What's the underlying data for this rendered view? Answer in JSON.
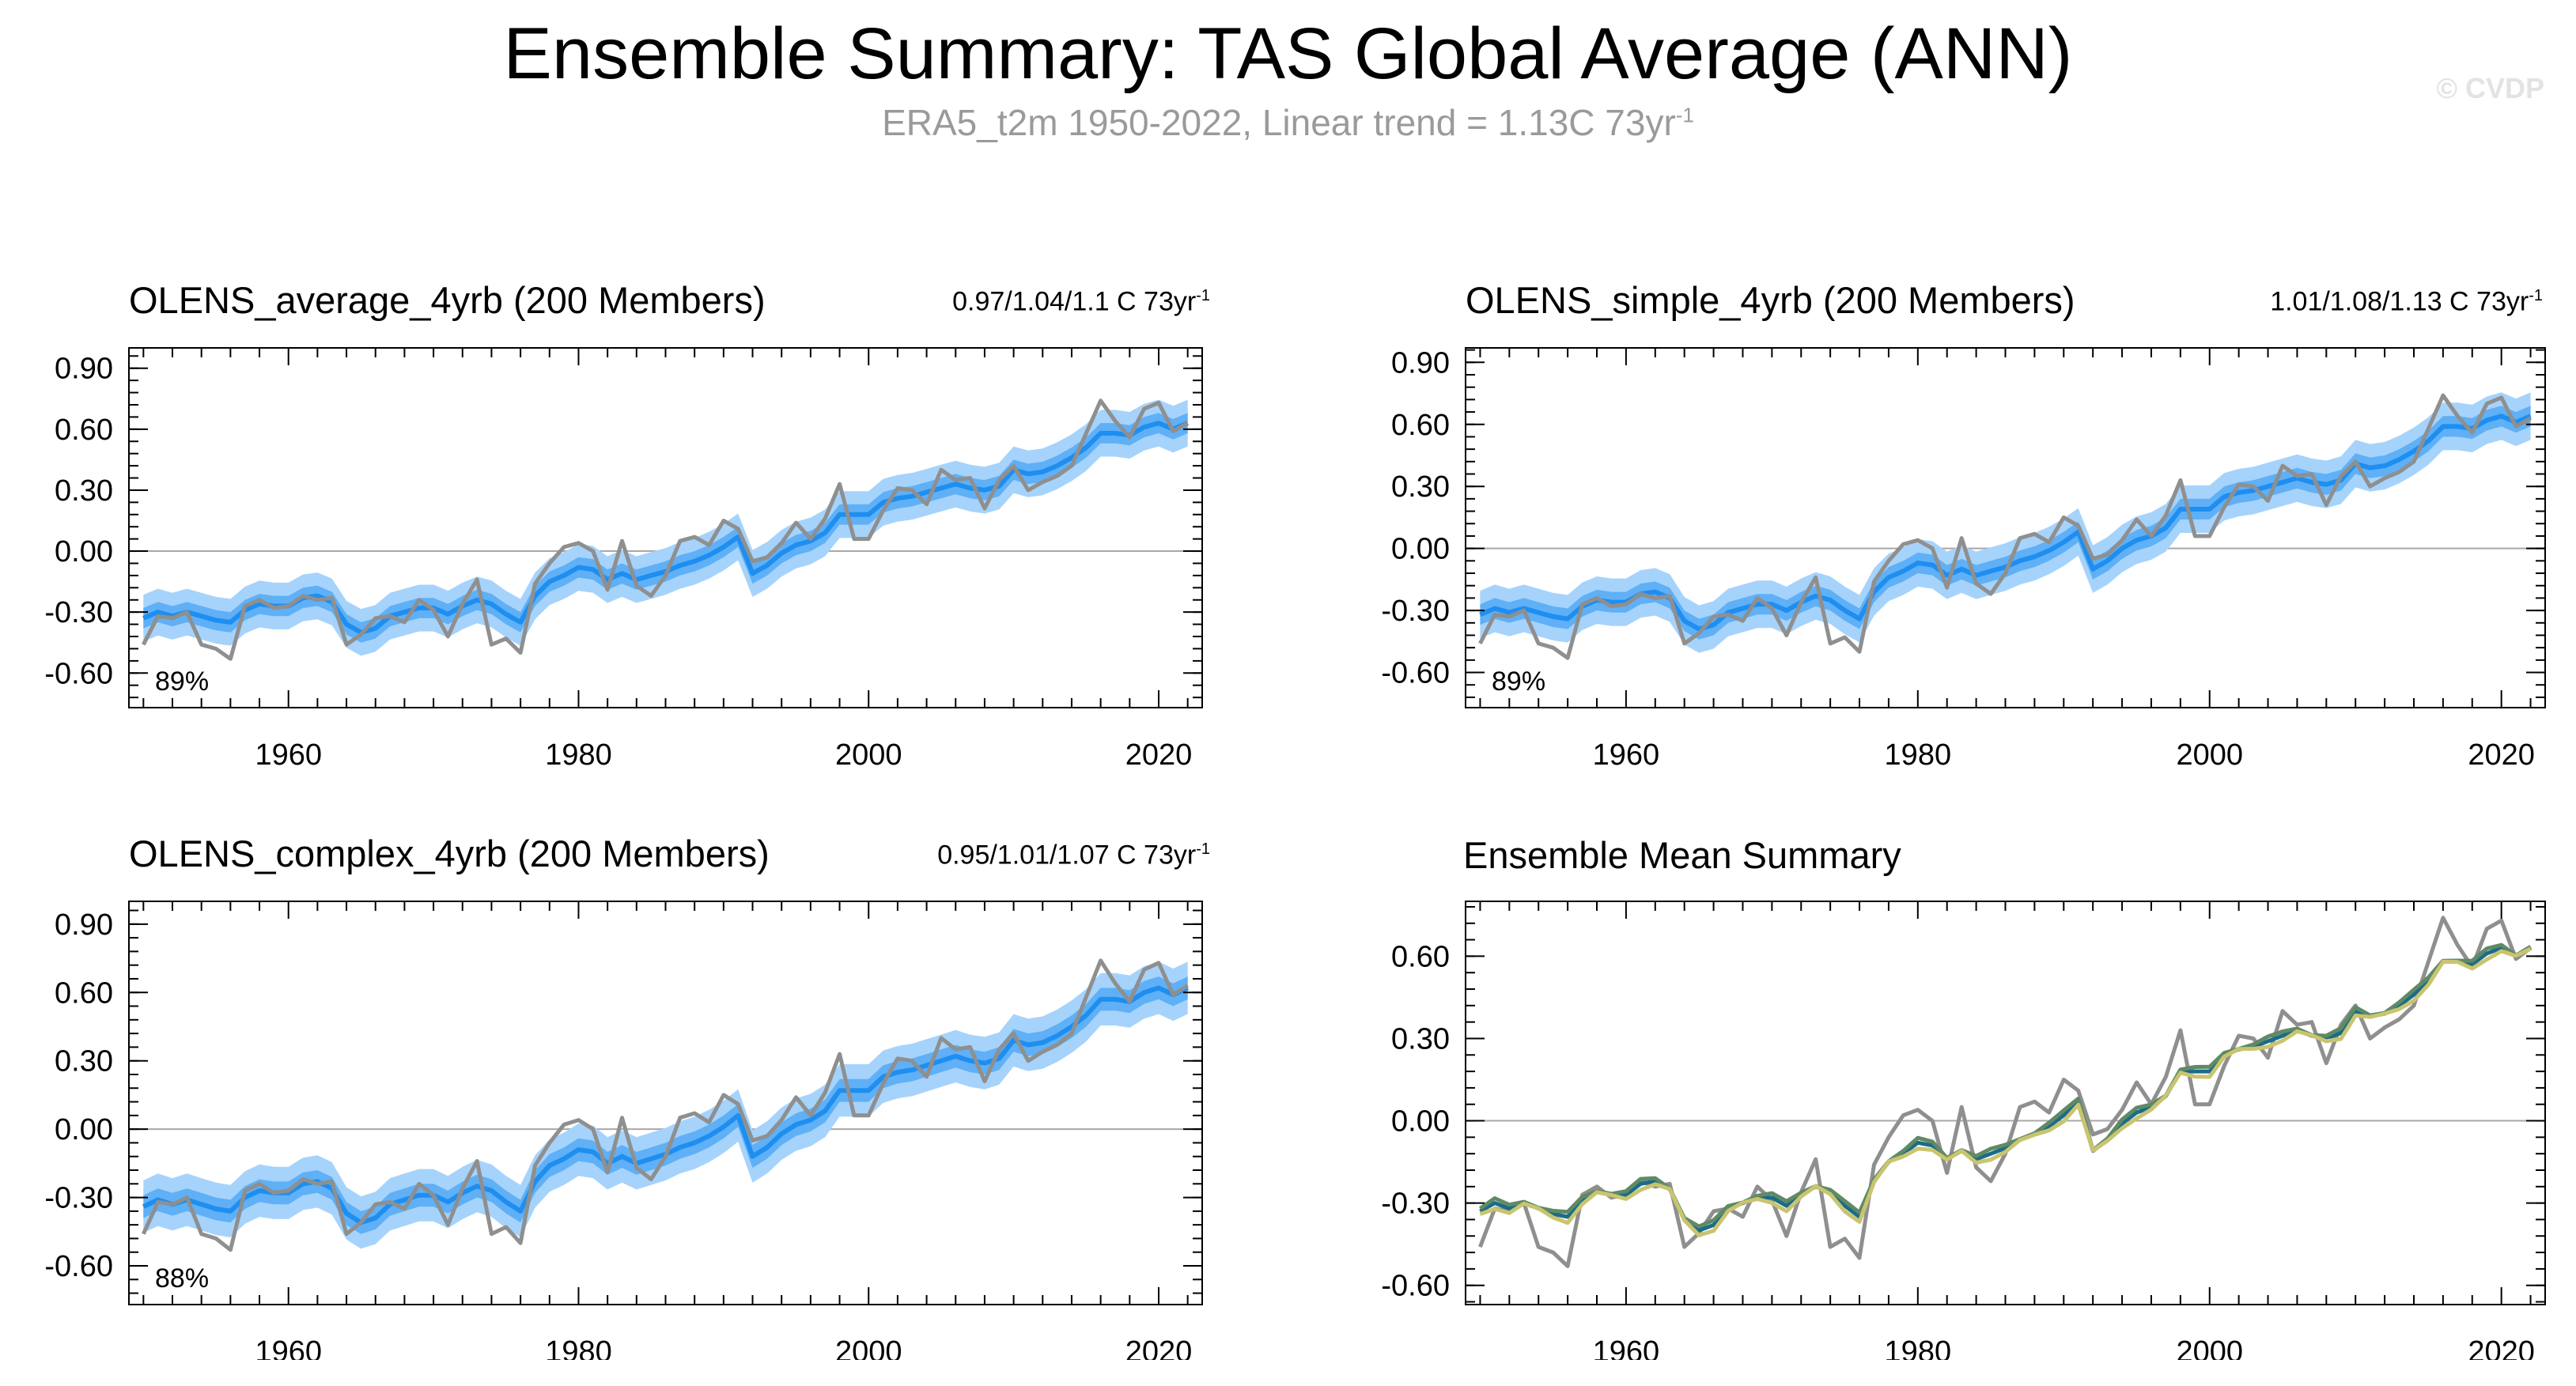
{
  "main_title": "Ensemble Summary: TAS Global Average (ANN)",
  "subtitle": {
    "text": "ERA5_t2m 1950-2022, Linear trend = 1.13C 73yr",
    "superscript": "-1"
  },
  "watermark": "© CVDP",
  "colors": {
    "band_outer": "#a6d3fb",
    "band_inner": "#5fb0f6",
    "ensemble_mean_line": "#1e8ef0",
    "observations": "#8f8f8f",
    "average_title": "#1b6b8a",
    "simple_title": "#5f8a65",
    "complex_title": "#c9c46f",
    "zero_line": "#a8a8a8"
  },
  "chart_data": [
    {
      "type": "line",
      "id": "average",
      "title": "OLENS_average_4yrb (200 Members)",
      "title_color": "#1b6b8a",
      "trend": {
        "text": "0.97/1.04/1.1 C 73yr",
        "superscript": "-1"
      },
      "percent_label": "89%",
      "xlim": [
        1949,
        2023
      ],
      "ylim": [
        -0.77,
        1.0
      ],
      "xticks": [
        1960,
        1980,
        2000,
        2020
      ],
      "xtick_labels": [
        "1960",
        "1980",
        "2000",
        "2020"
      ],
      "yticks": [
        -0.6,
        -0.3,
        0.0,
        0.3,
        0.6,
        0.9
      ],
      "ytick_labels": [
        "-0.60",
        "-0.30",
        "0.00",
        "0.30",
        "0.60",
        "0.90"
      ],
      "ensemble_offset": 0.0,
      "legend": []
    },
    {
      "type": "line",
      "id": "simple",
      "title": "OLENS_simple_4yrb (200 Members)",
      "title_color": "#5f8a65",
      "trend": {
        "text": "1.01/1.08/1.13 C 73yr",
        "superscript": "-1"
      },
      "percent_label": "89%",
      "xlim": [
        1949,
        2023
      ],
      "ylim": [
        -0.77,
        0.97
      ],
      "xticks": [
        1960,
        1980,
        2000,
        2020
      ],
      "xtick_labels": [
        "1960",
        "1980",
        "2000",
        "2020"
      ],
      "yticks": [
        -0.6,
        -0.3,
        0.0,
        0.3,
        0.6,
        0.9
      ],
      "ytick_labels": [
        "-0.60",
        "-0.30",
        "0.00",
        "0.30",
        "0.60",
        "0.90"
      ],
      "ensemble_offset": 0.01,
      "legend": []
    },
    {
      "type": "line",
      "id": "complex",
      "title": "OLENS_complex_4yrb (200 Members)",
      "title_color": "#c9c46f",
      "trend": {
        "text": "0.95/1.01/1.07 C 73yr",
        "superscript": "-1"
      },
      "percent_label": "88%",
      "xlim": [
        1949,
        2023
      ],
      "ylim": [
        -0.77,
        1.0
      ],
      "xticks": [
        1960,
        1980,
        2000,
        2020
      ],
      "xtick_labels": [
        "1960",
        "1980",
        "2000",
        "2020"
      ],
      "yticks": [
        -0.6,
        -0.3,
        0.0,
        0.3,
        0.6,
        0.9
      ],
      "ytick_labels": [
        "-0.60",
        "-0.30",
        "0.00",
        "0.30",
        "0.60",
        "0.90"
      ],
      "ensemble_offset": -0.01,
      "legend": []
    },
    {
      "type": "line",
      "id": "ensemble-mean",
      "title": "Ensemble Mean Summary",
      "title_color": "#000000",
      "xlim": [
        1949,
        2023
      ],
      "ylim": [
        -0.67,
        0.8
      ],
      "xticks": [
        1960,
        1980,
        2000,
        2020
      ],
      "xtick_labels": [
        "1960",
        "1980",
        "2000",
        "2020"
      ],
      "yticks": [
        -0.6,
        -0.3,
        0.0,
        0.3,
        0.6
      ],
      "ytick_labels": [
        "-0.60",
        "-0.30",
        "0.00",
        "0.30",
        "0.60"
      ],
      "series_colors": [
        "#8f8f8f",
        "#1b6b8a",
        "#5f8a65",
        "#c9c46f"
      ]
    }
  ],
  "years": [
    1950,
    1951,
    1952,
    1953,
    1954,
    1955,
    1956,
    1957,
    1958,
    1959,
    1960,
    1961,
    1962,
    1963,
    1964,
    1965,
    1966,
    1967,
    1968,
    1969,
    1970,
    1971,
    1972,
    1973,
    1974,
    1975,
    1976,
    1977,
    1978,
    1979,
    1980,
    1981,
    1982,
    1983,
    1984,
    1985,
    1986,
    1987,
    1988,
    1989,
    1990,
    1991,
    1992,
    1993,
    1994,
    1995,
    1996,
    1997,
    1998,
    1999,
    2000,
    2001,
    2002,
    2003,
    2004,
    2005,
    2006,
    2007,
    2008,
    2009,
    2010,
    2011,
    2012,
    2013,
    2014,
    2015,
    2016,
    2017,
    2018,
    2019,
    2020,
    2021,
    2022
  ],
  "observations": {
    "name": "ERA5_t2m",
    "values": [
      -0.46,
      -0.32,
      -0.33,
      -0.3,
      -0.46,
      -0.48,
      -0.53,
      -0.27,
      -0.24,
      -0.28,
      -0.27,
      -0.22,
      -0.24,
      -0.23,
      -0.46,
      -0.41,
      -0.33,
      -0.32,
      -0.35,
      -0.24,
      -0.29,
      -0.42,
      -0.26,
      -0.14,
      -0.46,
      -0.43,
      -0.5,
      -0.16,
      -0.06,
      0.02,
      0.04,
      0.0,
      -0.19,
      0.05,
      -0.17,
      -0.22,
      -0.12,
      0.05,
      0.07,
      0.03,
      0.15,
      0.11,
      -0.05,
      -0.03,
      0.04,
      0.14,
      0.06,
      0.16,
      0.33,
      0.06,
      0.06,
      0.2,
      0.31,
      0.3,
      0.23,
      0.4,
      0.35,
      0.36,
      0.21,
      0.35,
      0.42,
      0.3,
      0.34,
      0.37,
      0.42,
      0.58,
      0.74,
      0.64,
      0.56,
      0.7,
      0.73,
      0.59,
      0.63
    ]
  },
  "ensemble": {
    "mean": [
      -0.33,
      -0.3,
      -0.32,
      -0.3,
      -0.32,
      -0.34,
      -0.35,
      -0.29,
      -0.26,
      -0.27,
      -0.27,
      -0.23,
      -0.22,
      -0.25,
      -0.36,
      -0.4,
      -0.38,
      -0.32,
      -0.3,
      -0.28,
      -0.28,
      -0.31,
      -0.27,
      -0.24,
      -0.26,
      -0.31,
      -0.35,
      -0.22,
      -0.15,
      -0.12,
      -0.08,
      -0.09,
      -0.14,
      -0.11,
      -0.14,
      -0.12,
      -0.1,
      -0.07,
      -0.05,
      -0.02,
      0.02,
      0.07,
      -0.11,
      -0.07,
      -0.01,
      0.03,
      0.05,
      0.09,
      0.18,
      0.18,
      0.18,
      0.24,
      0.26,
      0.27,
      0.29,
      0.31,
      0.33,
      0.31,
      0.3,
      0.32,
      0.4,
      0.38,
      0.39,
      0.42,
      0.46,
      0.51,
      0.58,
      0.58,
      0.57,
      0.61,
      0.63,
      0.6,
      0.63
    ],
    "inner_halfwidth": 0.05,
    "outer_halfwidth": 0.115
  }
}
